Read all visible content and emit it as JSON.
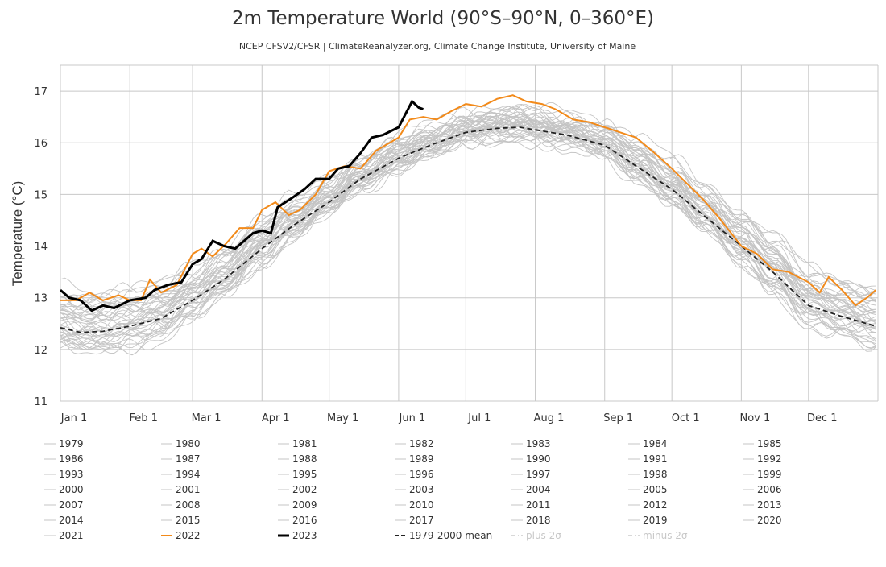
{
  "chart_data": {
    "type": "line",
    "title": "2m Temperature World (90°S–90°N, 0–360°E)",
    "subtitle": "NCEP CFSV2/CFSR | ClimateReanalyzer.org, Climate Change Institute, University of Maine",
    "xlabel": "",
    "ylabel": "Temperature (°C)",
    "ylim": [
      11,
      17.5
    ],
    "yticks": [
      11,
      12,
      13,
      14,
      15,
      16,
      17
    ],
    "xticks": [
      {
        "date": "01-01",
        "label": "Jan 1"
      },
      {
        "date": "02-01",
        "label": "Feb 1"
      },
      {
        "date": "03-01",
        "label": "Mar 1"
      },
      {
        "date": "04-01",
        "label": "Apr 1"
      },
      {
        "date": "05-01",
        "label": "May 1"
      },
      {
        "date": "06-01",
        "label": "Jun 1"
      },
      {
        "date": "07-01",
        "label": "Jul 1"
      },
      {
        "date": "08-01",
        "label": "Aug 1"
      },
      {
        "date": "09-01",
        "label": "Sep 1"
      },
      {
        "date": "10-01",
        "label": "Oct 1"
      },
      {
        "date": "11-01",
        "label": "Nov 1"
      },
      {
        "date": "12-01",
        "label": "Dec 1"
      }
    ],
    "grid": true,
    "legend_position": "bottom",
    "colors": {
      "historical": "#c4c4c4",
      "y2022": "#f28a1a",
      "y2023": "#000000",
      "mean": "#222222",
      "sigma": "#cccccc",
      "grid": "#c8c8c8"
    },
    "mean": {
      "name": "1979-2000 mean",
      "points": [
        [
          "01-01",
          12.42
        ],
        [
          "01-10",
          12.33
        ],
        [
          "01-20",
          12.35
        ],
        [
          "02-01",
          12.45
        ],
        [
          "02-15",
          12.6
        ],
        [
          "03-01",
          12.95
        ],
        [
          "03-15",
          13.35
        ],
        [
          "04-01",
          13.95
        ],
        [
          "04-15",
          14.4
        ],
        [
          "05-01",
          14.85
        ],
        [
          "05-15",
          15.3
        ],
        [
          "06-01",
          15.7
        ],
        [
          "06-15",
          15.95
        ],
        [
          "07-01",
          16.2
        ],
        [
          "07-15",
          16.28
        ],
        [
          "07-25",
          16.3
        ],
        [
          "08-01",
          16.25
        ],
        [
          "08-15",
          16.15
        ],
        [
          "09-01",
          15.95
        ],
        [
          "09-15",
          15.55
        ],
        [
          "10-01",
          15.1
        ],
        [
          "10-15",
          14.6
        ],
        [
          "11-01",
          14.0
        ],
        [
          "11-15",
          13.5
        ],
        [
          "12-01",
          12.85
        ],
        [
          "12-15",
          12.65
        ],
        [
          "12-31",
          12.45
        ]
      ]
    },
    "series_2022": {
      "name": "2022",
      "points": [
        [
          "01-01",
          12.95
        ],
        [
          "01-08",
          12.95
        ],
        [
          "01-14",
          13.1
        ],
        [
          "01-20",
          12.95
        ],
        [
          "01-27",
          13.05
        ],
        [
          "02-01",
          12.95
        ],
        [
          "02-06",
          12.95
        ],
        [
          "02-10",
          13.35
        ],
        [
          "02-15",
          13.1
        ],
        [
          "02-22",
          13.25
        ],
        [
          "03-01",
          13.85
        ],
        [
          "03-05",
          13.95
        ],
        [
          "03-10",
          13.8
        ],
        [
          "03-16",
          14.05
        ],
        [
          "03-22",
          14.35
        ],
        [
          "03-28",
          14.35
        ],
        [
          "04-01",
          14.7
        ],
        [
          "04-07",
          14.85
        ],
        [
          "04-13",
          14.6
        ],
        [
          "04-18",
          14.7
        ],
        [
          "04-25",
          15.0
        ],
        [
          "05-01",
          15.45
        ],
        [
          "05-08",
          15.55
        ],
        [
          "05-15",
          15.5
        ],
        [
          "05-22",
          15.85
        ],
        [
          "06-01",
          16.1
        ],
        [
          "06-06",
          16.45
        ],
        [
          "06-12",
          16.5
        ],
        [
          "06-18",
          16.45
        ],
        [
          "06-24",
          16.6
        ],
        [
          "07-01",
          16.75
        ],
        [
          "07-08",
          16.7
        ],
        [
          "07-15",
          16.85
        ],
        [
          "07-22",
          16.92
        ],
        [
          "07-28",
          16.8
        ],
        [
          "08-04",
          16.75
        ],
        [
          "08-10",
          16.65
        ],
        [
          "08-18",
          16.45
        ],
        [
          "08-25",
          16.4
        ],
        [
          "09-01",
          16.3
        ],
        [
          "09-08",
          16.2
        ],
        [
          "09-15",
          16.1
        ],
        [
          "09-22",
          15.85
        ],
        [
          "10-01",
          15.5
        ],
        [
          "10-08",
          15.2
        ],
        [
          "10-15",
          14.9
        ],
        [
          "10-22",
          14.55
        ],
        [
          "11-01",
          14.0
        ],
        [
          "11-08",
          13.85
        ],
        [
          "11-15",
          13.55
        ],
        [
          "11-22",
          13.5
        ],
        [
          "12-01",
          13.3
        ],
        [
          "12-06",
          13.1
        ],
        [
          "12-10",
          13.4
        ],
        [
          "12-16",
          13.15
        ],
        [
          "12-22",
          12.85
        ],
        [
          "12-27",
          13.0
        ],
        [
          "12-31",
          13.15
        ]
      ]
    },
    "series_2023": {
      "name": "2023",
      "points": [
        [
          "01-01",
          13.15
        ],
        [
          "01-05",
          13.0
        ],
        [
          "01-10",
          12.95
        ],
        [
          "01-15",
          12.75
        ],
        [
          "01-20",
          12.85
        ],
        [
          "01-25",
          12.8
        ],
        [
          "02-01",
          12.95
        ],
        [
          "02-08",
          13.0
        ],
        [
          "02-12",
          13.15
        ],
        [
          "02-18",
          13.25
        ],
        [
          "02-24",
          13.3
        ],
        [
          "03-01",
          13.65
        ],
        [
          "03-05",
          13.75
        ],
        [
          "03-10",
          14.1
        ],
        [
          "03-15",
          14.0
        ],
        [
          "03-20",
          13.95
        ],
        [
          "03-24",
          14.1
        ],
        [
          "03-28",
          14.25
        ],
        [
          "04-01",
          14.3
        ],
        [
          "04-05",
          14.25
        ],
        [
          "04-08",
          14.75
        ],
        [
          "04-15",
          14.95
        ],
        [
          "04-20",
          15.1
        ],
        [
          "04-25",
          15.3
        ],
        [
          "05-01",
          15.3
        ],
        [
          "05-05",
          15.5
        ],
        [
          "05-10",
          15.55
        ],
        [
          "05-15",
          15.8
        ],
        [
          "05-20",
          16.1
        ],
        [
          "05-25",
          16.15
        ],
        [
          "06-01",
          16.3
        ],
        [
          "06-04",
          16.55
        ],
        [
          "06-07",
          16.8
        ],
        [
          "06-10",
          16.68
        ],
        [
          "06-12",
          16.65
        ]
      ]
    },
    "historical_years": {
      "note_anomaly_vs_mean": "approximate annual offset from the 1979-2000 mean",
      "years": [
        [
          "1979",
          -0.2
        ],
        [
          "1980",
          -0.1
        ],
        [
          "1981",
          -0.12
        ],
        [
          "1982",
          -0.2
        ],
        [
          "1983",
          0.0
        ],
        [
          "1984",
          -0.2
        ],
        [
          "1985",
          -0.25
        ],
        [
          "1986",
          -0.15
        ],
        [
          "1987",
          0.0
        ],
        [
          "1988",
          0.02
        ],
        [
          "1989",
          -0.12
        ],
        [
          "1990",
          0.0
        ],
        [
          "1991",
          -0.02
        ],
        [
          "1992",
          -0.25
        ],
        [
          "1993",
          -0.2
        ],
        [
          "1994",
          -0.1
        ],
        [
          "1995",
          0.05
        ],
        [
          "1996",
          -0.08
        ],
        [
          "1997",
          0.08
        ],
        [
          "1998",
          0.25
        ],
        [
          "1999",
          -0.02
        ],
        [
          "2000",
          -0.02
        ],
        [
          "2001",
          0.1
        ],
        [
          "2002",
          0.18
        ],
        [
          "2003",
          0.2
        ],
        [
          "2004",
          0.12
        ],
        [
          "2005",
          0.25
        ],
        [
          "2006",
          0.22
        ],
        [
          "2007",
          0.2
        ],
        [
          "2008",
          0.08
        ],
        [
          "2009",
          0.22
        ],
        [
          "2010",
          0.3
        ],
        [
          "2011",
          0.15
        ],
        [
          "2012",
          0.22
        ],
        [
          "2013",
          0.28
        ],
        [
          "2014",
          0.3
        ],
        [
          "2015",
          0.4
        ],
        [
          "2016",
          0.5
        ],
        [
          "2017",
          0.45
        ],
        [
          "2018",
          0.38
        ],
        [
          "2019",
          0.5
        ],
        [
          "2020",
          0.52
        ],
        [
          "2021",
          0.4
        ]
      ]
    }
  },
  "legend": {
    "items": [
      "1979",
      "1980",
      "1981",
      "1982",
      "1983",
      "1984",
      "1985",
      "1986",
      "1987",
      "1988",
      "1989",
      "1990",
      "1991",
      "1992",
      "1993",
      "1994",
      "1995",
      "1996",
      "1997",
      "1998",
      "1999",
      "2000",
      "2001",
      "2002",
      "2003",
      "2004",
      "2005",
      "2006",
      "2007",
      "2008",
      "2009",
      "2010",
      "2011",
      "2012",
      "2013",
      "2014",
      "2015",
      "2016",
      "2017",
      "2018",
      "2019",
      "2020",
      "2021",
      "2022",
      "2023",
      "1979-2000 mean",
      "plus 2σ",
      "minus 2σ"
    ]
  }
}
